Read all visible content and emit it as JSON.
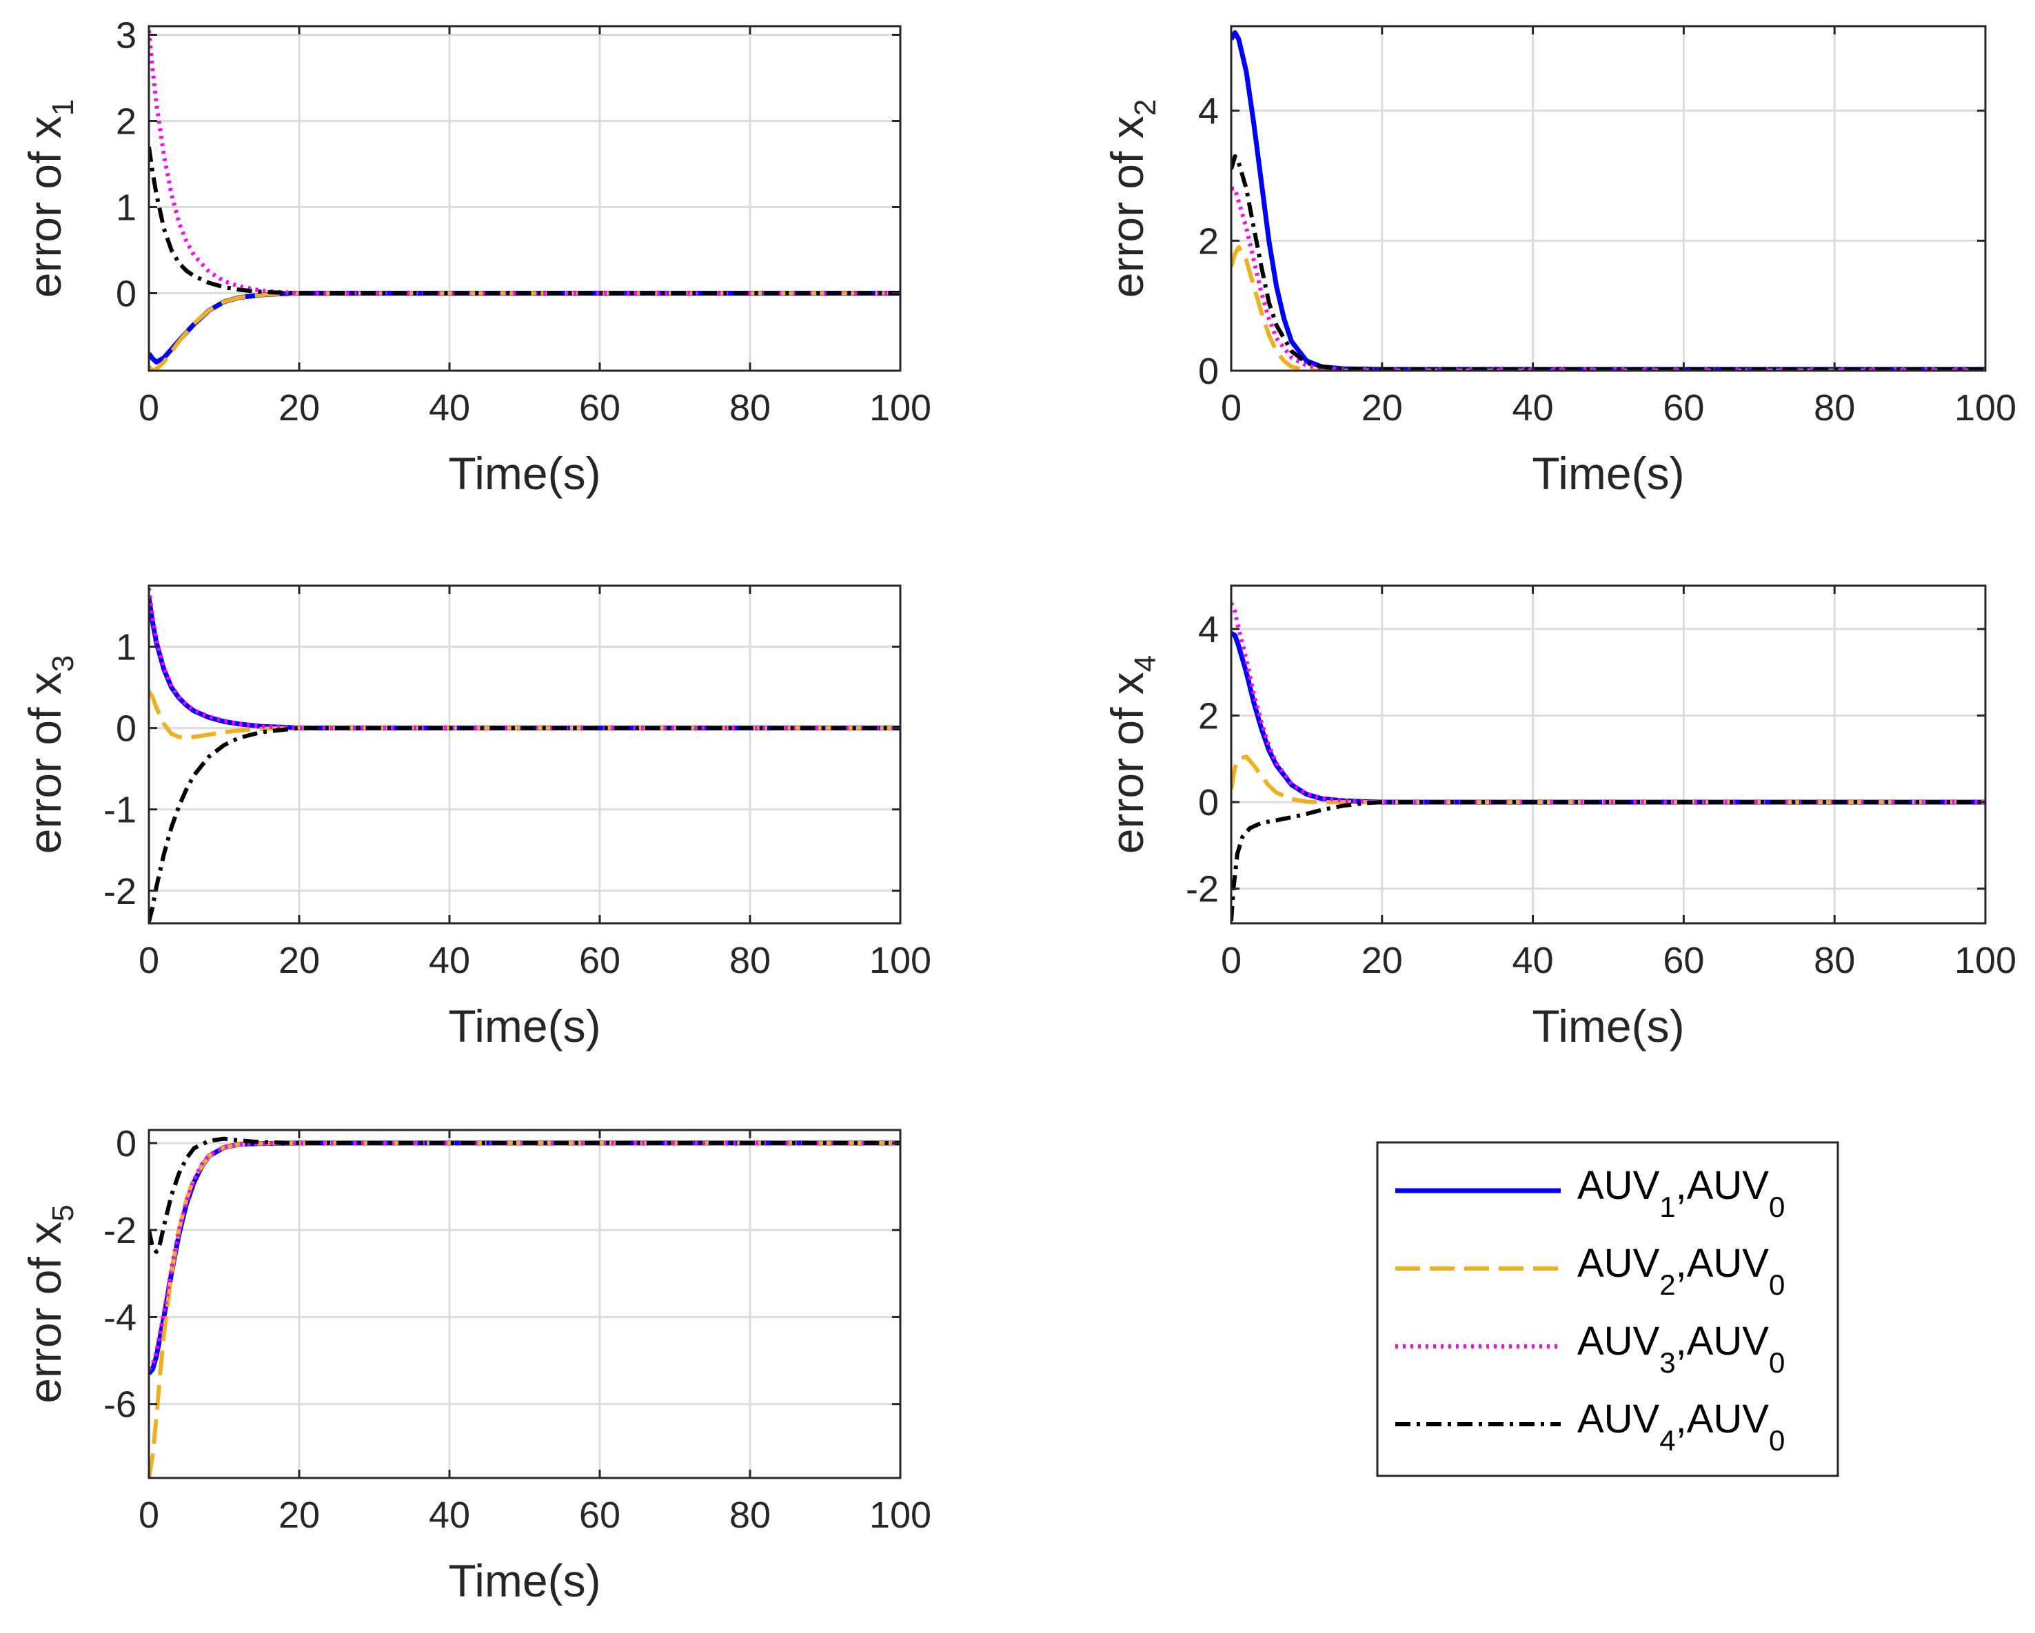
{
  "chart_data": [
    {
      "type": "line",
      "xlabel": "Time(s)",
      "ylabel": "error of x",
      "ylabel_sub": "1",
      "xlim": [
        0,
        100
      ],
      "ylim": [
        -0.9,
        3.1
      ],
      "xticks": [
        "0",
        "20",
        "40",
        "60",
        "80",
        "100"
      ],
      "yticks": [
        {
          "v": 0,
          "label": "0"
        },
        {
          "v": 1,
          "label": "1"
        },
        {
          "v": 2,
          "label": "2"
        },
        {
          "v": 3,
          "label": "3"
        }
      ],
      "grid": true,
      "series": [
        {
          "name": "AUV1,AUV0",
          "x": [
            0,
            0.5,
            1,
            2,
            3,
            4,
            6,
            8,
            10,
            12,
            15,
            18,
            20,
            25,
            100
          ],
          "y": [
            -0.7,
            -0.76,
            -0.8,
            -0.75,
            -0.65,
            -0.55,
            -0.36,
            -0.2,
            -0.1,
            -0.05,
            -0.02,
            -0.005,
            0,
            0,
            0
          ]
        },
        {
          "name": "AUV2,AUV0",
          "x": [
            0,
            0.5,
            1,
            2,
            3,
            4,
            6,
            8,
            10,
            12,
            15,
            18,
            20,
            25,
            100
          ],
          "y": [
            -0.85,
            -0.9,
            -0.88,
            -0.8,
            -0.68,
            -0.56,
            -0.35,
            -0.2,
            -0.1,
            -0.05,
            -0.02,
            -0.005,
            0,
            0,
            0
          ]
        },
        {
          "name": "AUV3,AUV0",
          "x": [
            0,
            0.5,
            1,
            2,
            3,
            4,
            5,
            6,
            8,
            10,
            12,
            15,
            18,
            20,
            100
          ],
          "y": [
            3.05,
            2.6,
            2.2,
            1.6,
            1.15,
            0.82,
            0.6,
            0.44,
            0.25,
            0.14,
            0.08,
            0.03,
            0.01,
            0,
            0
          ]
        },
        {
          "name": "AUV4,AUV0",
          "x": [
            0,
            0.5,
            1,
            2,
            3,
            4,
            5,
            6,
            8,
            10,
            12,
            15,
            18,
            20,
            100
          ],
          "y": [
            1.7,
            1.4,
            1.15,
            0.75,
            0.5,
            0.35,
            0.26,
            0.2,
            0.12,
            0.07,
            0.04,
            0.015,
            0.005,
            0,
            0
          ]
        }
      ]
    },
    {
      "type": "line",
      "xlabel": "Time(s)",
      "ylabel": "error of x",
      "ylabel_sub": "2",
      "xlim": [
        0,
        100
      ],
      "ylim": [
        0,
        5.3
      ],
      "xticks": [
        "0",
        "20",
        "40",
        "60",
        "80",
        "100"
      ],
      "yticks": [
        {
          "v": 0,
          "label": "0"
        },
        {
          "v": 2,
          "label": "2"
        },
        {
          "v": 4,
          "label": "4"
        }
      ],
      "grid": true,
      "series": [
        {
          "name": "AUV1,AUV0",
          "x": [
            0,
            0.5,
            1,
            2,
            3,
            4,
            5,
            6,
            7,
            8,
            10,
            12,
            15,
            20,
            100
          ],
          "y": [
            5.1,
            5.2,
            5.1,
            4.6,
            3.8,
            2.9,
            2.0,
            1.3,
            0.8,
            0.45,
            0.15,
            0.06,
            0.03,
            0.02,
            0.02
          ]
        },
        {
          "name": "AUV2,AUV0",
          "x": [
            0,
            0.5,
            1,
            2,
            3,
            4,
            5,
            6,
            7,
            8,
            10,
            12,
            100
          ],
          "y": [
            1.6,
            1.8,
            1.9,
            1.7,
            1.3,
            0.9,
            0.55,
            0.3,
            0.15,
            0.06,
            0.01,
            0,
            0
          ]
        },
        {
          "name": "AUV3,AUV0",
          "x": [
            0,
            0.5,
            1,
            2,
            3,
            4,
            5,
            6,
            8,
            10,
            12,
            15,
            20,
            100
          ],
          "y": [
            2.8,
            2.8,
            2.6,
            2.2,
            1.7,
            1.2,
            0.8,
            0.5,
            0.2,
            0.08,
            0.04,
            0.02,
            0.02,
            0.02
          ]
        },
        {
          "name": "AUV4,AUV0",
          "x": [
            0,
            0.5,
            1,
            2,
            3,
            4,
            5,
            6,
            8,
            10,
            12,
            15,
            20,
            100
          ],
          "y": [
            3.1,
            3.3,
            3.2,
            2.8,
            2.2,
            1.6,
            1.05,
            0.7,
            0.3,
            0.12,
            0.06,
            0.03,
            0.02,
            0.02
          ]
        }
      ]
    },
    {
      "type": "line",
      "xlabel": "Time(s)",
      "ylabel": "error of x",
      "ylabel_sub": "3",
      "xlim": [
        0,
        100
      ],
      "ylim": [
        -2.4,
        1.75
      ],
      "xticks": [
        "0",
        "20",
        "40",
        "60",
        "80",
        "100"
      ],
      "yticks": [
        {
          "v": -2,
          "label": "-2"
        },
        {
          "v": -1,
          "label": "-1"
        },
        {
          "v": 0,
          "label": "0"
        },
        {
          "v": 1,
          "label": "1"
        }
      ],
      "grid": true,
      "series": [
        {
          "name": "AUV1,AUV0",
          "x": [
            0,
            0.5,
            1,
            2,
            3,
            4,
            5,
            6,
            8,
            10,
            12,
            15,
            18,
            20,
            100
          ],
          "y": [
            1.6,
            1.3,
            1.05,
            0.72,
            0.5,
            0.37,
            0.28,
            0.21,
            0.13,
            0.08,
            0.05,
            0.02,
            0.01,
            0,
            0
          ]
        },
        {
          "name": "AUV2,AUV0",
          "x": [
            0,
            0.5,
            1,
            2,
            3,
            4,
            5,
            6,
            8,
            10,
            12,
            15,
            18,
            20,
            100
          ],
          "y": [
            0.45,
            0.38,
            0.25,
            0.05,
            -0.07,
            -0.11,
            -0.12,
            -0.11,
            -0.08,
            -0.05,
            -0.03,
            -0.01,
            0,
            0,
            0
          ]
        },
        {
          "name": "AUV3,AUV0",
          "x": [
            0,
            0.5,
            1,
            2,
            3,
            4,
            5,
            6,
            8,
            10,
            12,
            15,
            18,
            20,
            100
          ],
          "y": [
            1.72,
            1.35,
            1.08,
            0.74,
            0.52,
            0.38,
            0.29,
            0.22,
            0.14,
            0.09,
            0.05,
            0.02,
            0.01,
            0,
            0
          ]
        },
        {
          "name": "AUV4,AUV0",
          "x": [
            0,
            0.5,
            1,
            2,
            3,
            4,
            5,
            6,
            8,
            10,
            12,
            15,
            18,
            20,
            100
          ],
          "y": [
            -2.38,
            -2.2,
            -1.95,
            -1.55,
            -1.22,
            -0.96,
            -0.75,
            -0.58,
            -0.35,
            -0.21,
            -0.12,
            -0.05,
            -0.02,
            0,
            0
          ]
        }
      ]
    },
    {
      "type": "line",
      "xlabel": "Time(s)",
      "ylabel": "error of x",
      "ylabel_sub": "4",
      "xlim": [
        0,
        100
      ],
      "ylim": [
        -2.8,
        5.0
      ],
      "xticks": [
        "0",
        "20",
        "40",
        "60",
        "80",
        "100"
      ],
      "yticks": [
        {
          "v": -2,
          "label": "-2"
        },
        {
          "v": 0,
          "label": "0"
        },
        {
          "v": 2,
          "label": "2"
        },
        {
          "v": 4,
          "label": "4"
        }
      ],
      "grid": true,
      "series": [
        {
          "name": "AUV1,AUV0",
          "x": [
            0,
            0.5,
            1,
            2,
            3,
            4,
            5,
            6,
            8,
            10,
            12,
            15,
            18,
            20,
            100
          ],
          "y": [
            3.9,
            3.85,
            3.6,
            3.0,
            2.3,
            1.7,
            1.2,
            0.85,
            0.4,
            0.18,
            0.08,
            0.03,
            0.01,
            0,
            0
          ]
        },
        {
          "name": "AUV2,AUV0",
          "x": [
            0,
            0.5,
            1,
            2,
            3,
            4,
            5,
            6,
            8,
            10,
            12,
            15,
            100
          ],
          "y": [
            0.3,
            0.8,
            1.0,
            1.05,
            0.85,
            0.6,
            0.38,
            0.22,
            0.07,
            0.01,
            0,
            0,
            0
          ]
        },
        {
          "name": "AUV3,AUV0",
          "x": [
            0,
            0.5,
            1,
            2,
            3,
            4,
            5,
            6,
            8,
            10,
            12,
            15,
            18,
            20,
            100
          ],
          "y": [
            4.6,
            4.4,
            4.0,
            3.3,
            2.5,
            1.85,
            1.3,
            0.9,
            0.42,
            0.19,
            0.09,
            0.03,
            0.01,
            0,
            0
          ]
        },
        {
          "name": "AUV4,AUV0",
          "x": [
            0,
            0.3,
            0.8,
            1.5,
            2.5,
            4,
            6,
            8,
            10,
            12,
            15,
            18,
            20,
            100
          ],
          "y": [
            -2.75,
            -2.0,
            -1.2,
            -0.8,
            -0.6,
            -0.48,
            -0.42,
            -0.35,
            -0.27,
            -0.18,
            -0.08,
            -0.02,
            0,
            0
          ]
        }
      ]
    },
    {
      "type": "line",
      "xlabel": "Time(s)",
      "ylabel": "error of x",
      "ylabel_sub": "5",
      "xlim": [
        0,
        100
      ],
      "ylim": [
        -7.7,
        0.3
      ],
      "xticks": [
        "0",
        "20",
        "40",
        "60",
        "80",
        "100"
      ],
      "yticks": [
        {
          "v": -6,
          "label": "-6"
        },
        {
          "v": -4,
          "label": "-4"
        },
        {
          "v": -2,
          "label": "-2"
        },
        {
          "v": 0,
          "label": "0"
        }
      ],
      "grid": true,
      "series": [
        {
          "name": "AUV1,AUV0",
          "x": [
            0,
            0.5,
            1,
            2,
            3,
            4,
            5,
            6,
            7,
            8,
            10,
            12,
            15,
            20,
            100
          ],
          "y": [
            -5.3,
            -5.2,
            -4.9,
            -4.0,
            -3.0,
            -2.1,
            -1.4,
            -0.9,
            -0.55,
            -0.3,
            -0.1,
            -0.03,
            -0.01,
            0,
            0
          ]
        },
        {
          "name": "AUV2,AUV0",
          "x": [
            0,
            0.5,
            1,
            1.5,
            2,
            3,
            4,
            5,
            6,
            8,
            10,
            12,
            15,
            20,
            100
          ],
          "y": [
            -7.7,
            -7.2,
            -6.3,
            -5.3,
            -4.4,
            -3.0,
            -2.0,
            -1.3,
            -0.8,
            -0.3,
            -0.1,
            -0.03,
            -0.01,
            0,
            0
          ]
        },
        {
          "name": "AUV3,AUV0",
          "x": [
            0,
            0.5,
            1,
            2,
            3,
            4,
            5,
            6,
            7,
            8,
            10,
            12,
            15,
            20,
            100
          ],
          "y": [
            -5.2,
            -5.1,
            -4.8,
            -3.9,
            -2.9,
            -2.0,
            -1.35,
            -0.85,
            -0.5,
            -0.28,
            -0.09,
            -0.03,
            -0.01,
            0,
            0
          ]
        },
        {
          "name": "AUV4,AUV0",
          "x": [
            0,
            0.5,
            1,
            1.5,
            2,
            3,
            4,
            5,
            6,
            8,
            10,
            12,
            15,
            20,
            100
          ],
          "y": [
            -2.0,
            -2.4,
            -2.5,
            -2.3,
            -1.9,
            -1.2,
            -0.7,
            -0.35,
            -0.12,
            0.05,
            0.1,
            0.06,
            0.02,
            0,
            0
          ]
        }
      ]
    }
  ],
  "series_style": [
    {
      "color": "#0000ff",
      "dash": ""
    },
    {
      "color": "#edb120",
      "dash": "36,14"
    },
    {
      "color": "#ff00ff",
      "dash": "4,7"
    },
    {
      "color": "#000000",
      "dash": "22,9,5,9"
    }
  ],
  "legend": {
    "placement": "bottom-right",
    "entries": [
      {
        "main": "AUV",
        "sub1": "1",
        "mid": ",AUV",
        "sub2": "0"
      },
      {
        "main": "AUV",
        "sub1": "2",
        "mid": ",AUV",
        "sub2": "0"
      },
      {
        "main": "AUV",
        "sub1": "3",
        "mid": ",AUV",
        "sub2": "0"
      },
      {
        "main": "AUV",
        "sub1": "4",
        "mid": ",AUV",
        "sub2": "0"
      }
    ]
  }
}
